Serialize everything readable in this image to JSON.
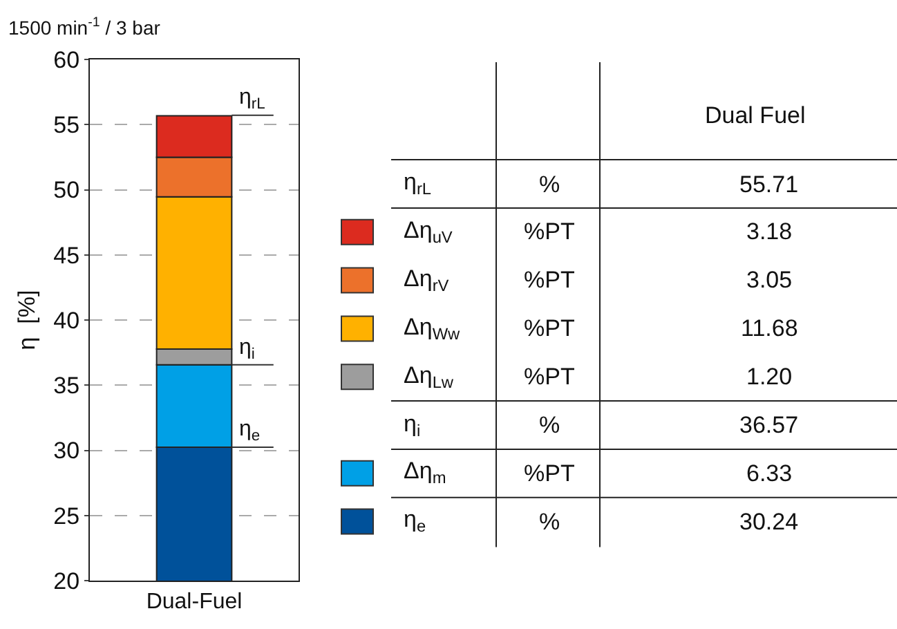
{
  "chart_data": {
    "type": "bar",
    "title": "1500 min$^{-1}$ / 3 bar",
    "ylabel": "η  [%]",
    "legend_title": "Dual Fuel",
    "categories": [
      "Dual-Fuel"
    ],
    "ylim": [
      20,
      60
    ],
    "yticks": [
      20,
      25,
      30,
      35,
      40,
      45,
      50,
      55,
      60
    ],
    "grid": "y",
    "legend": "right",
    "series": [
      {
        "name": "η$_{e}$",
        "color": "#00519a",
        "base": [
          0
        ],
        "values": [
          30.24
        ]
      },
      {
        "name": "Δη$_{m}$",
        "color": "#00a0e6",
        "base": [
          30.24
        ],
        "values": [
          6.33
        ]
      },
      {
        "name": "Δη$_{Lw}$",
        "color": "#9d9d9d",
        "base": [
          36.57
        ],
        "values": [
          1.2
        ]
      },
      {
        "name": "Δη$_{Ww}$",
        "color": "#ffb100",
        "base": [
          37.77
        ],
        "values": [
          11.68
        ]
      },
      {
        "name": "Δη$_{rV}$",
        "color": "#ec712b",
        "base": [
          49.45
        ],
        "values": [
          3.05
        ]
      },
      {
        "name": "Δη$_{uV}$",
        "color": "#dc2b1f",
        "base": [
          52.5
        ],
        "values": [
          3.18
        ]
      }
    ],
    "annotations": [
      {
        "text": "η$_{rL}$",
        "x": "Dual-Fuel",
        "y": 55.71
      },
      {
        "text": "η$_{i}$",
        "x": "Dual-Fuel",
        "y": 36.57
      },
      {
        "text": "η$_{e}$",
        "x": "Dual-Fuel",
        "y": 30.24
      },
      "%",
      "%PT",
      "55.71",
      "36.57",
      "30.24",
      "6.33",
      "1.20",
      "11.68",
      "3.05",
      "3.18"
    ]
  }
}
